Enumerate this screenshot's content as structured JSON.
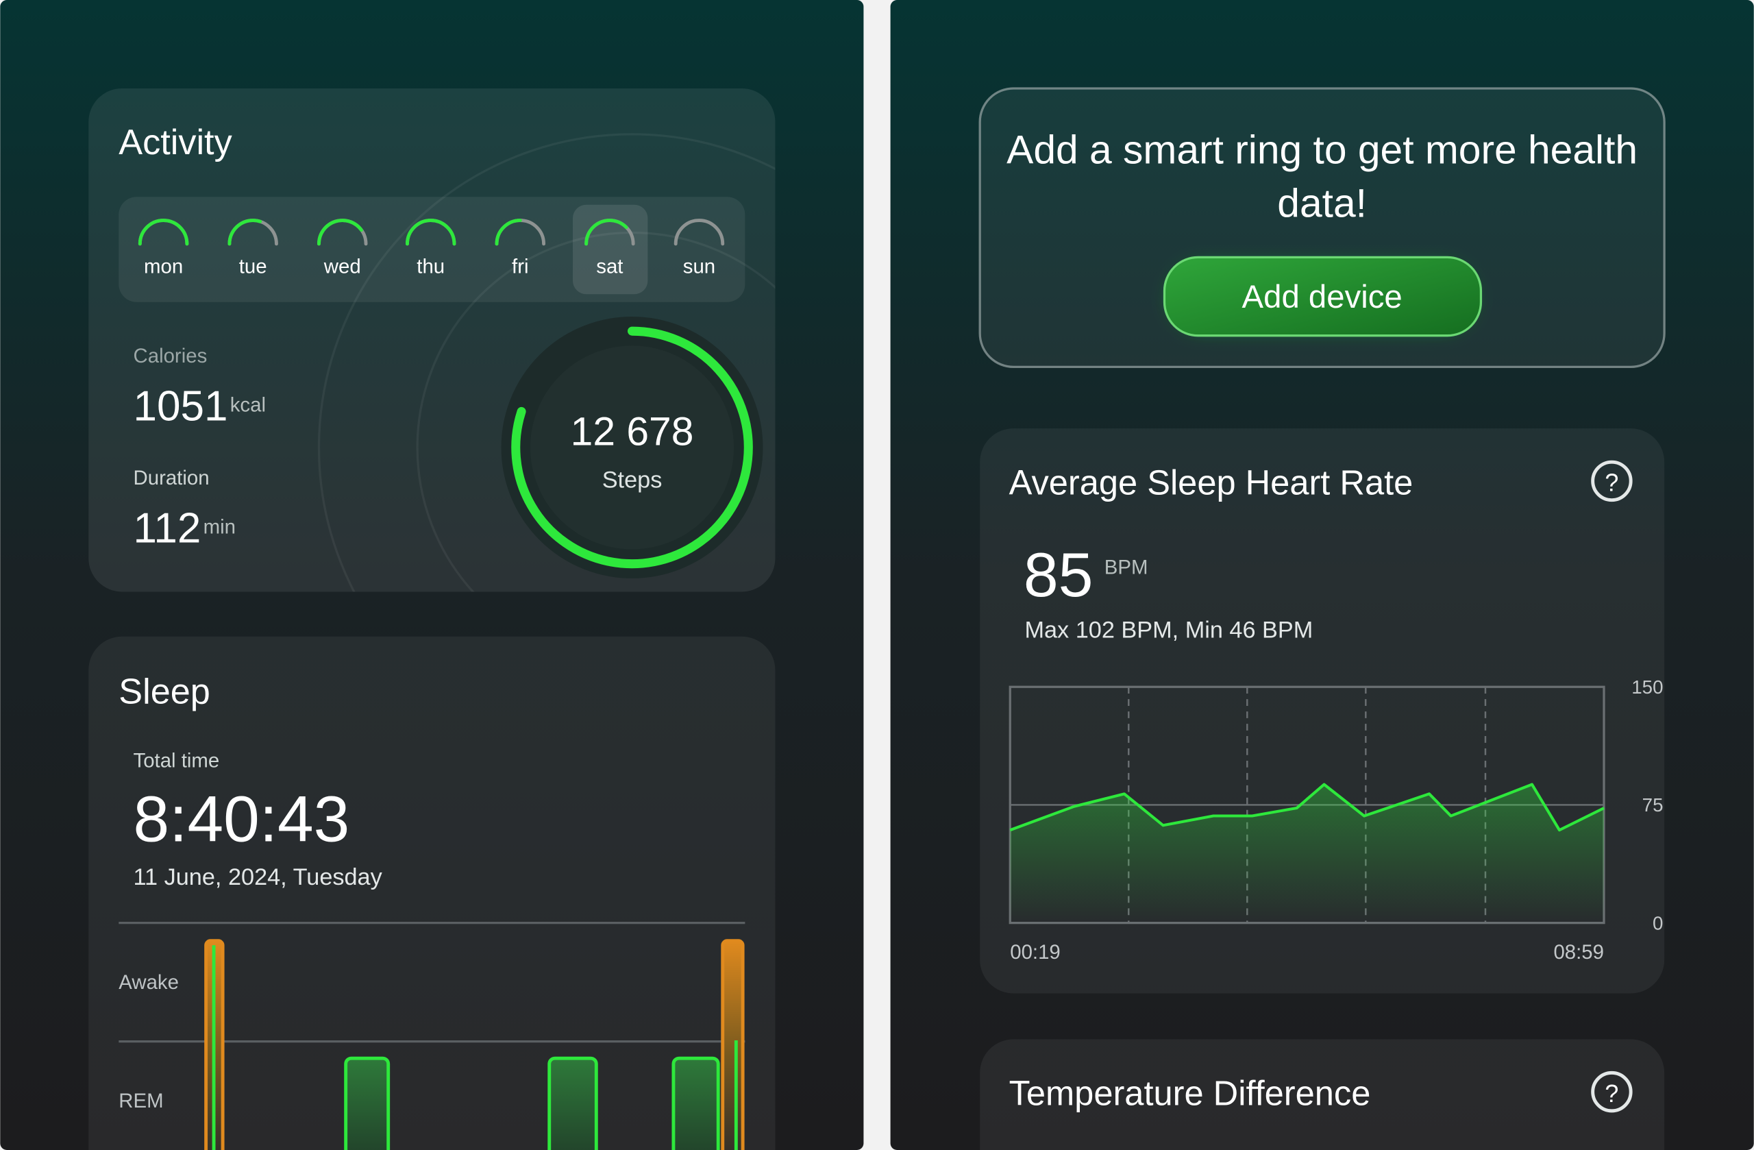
{
  "activity": {
    "title": "Activity",
    "days": [
      {
        "label": "mon",
        "progress": 1
      },
      {
        "label": "tue",
        "progress": 0.6
      },
      {
        "label": "wed",
        "progress": 0.8
      },
      {
        "label": "thu",
        "progress": 1
      },
      {
        "label": "fri",
        "progress": 0.5
      },
      {
        "label": "sat",
        "progress": 0.75
      },
      {
        "label": "sun",
        "progress": 0
      }
    ],
    "selected_day": 5,
    "calories": {
      "label": "Calories",
      "value": "1051",
      "unit": "kcal"
    },
    "duration": {
      "label": "Duration",
      "value": "112",
      "unit": "min"
    },
    "steps": {
      "value": "12 678",
      "label": "Steps",
      "progress": 0.8
    }
  },
  "sleep": {
    "title": "Sleep",
    "total_time_label": "Total time",
    "total_time": "8:40:43",
    "date": "11 June, 2024, Tuesday",
    "stages": [
      "Awake",
      "REM"
    ]
  },
  "promo": {
    "text_lines": [
      "Add a smart ring to get more health",
      "data!"
    ],
    "button": "Add device"
  },
  "heart_rate": {
    "title": "Average Sleep Heart Rate",
    "help": "?",
    "value": "85",
    "unit": "BPM",
    "summary": "Max 102 BPM, Min 46 BPM",
    "chart": {
      "type": "line",
      "color": "#2ee83c",
      "x": [
        0,
        56,
        100,
        134,
        178,
        212,
        251,
        275,
        310,
        367,
        386,
        457,
        481,
        520
      ],
      "values": [
        59,
        74,
        82,
        62,
        68,
        68,
        73,
        88,
        68,
        82,
        68,
        88,
        59,
        73
      ],
      "xlim": [
        0,
        520
      ],
      "xticks": [
        {
          "value": 0,
          "label": "00:19"
        },
        {
          "value": 520,
          "label": "08:59"
        }
      ],
      "ylim": [
        0,
        150
      ],
      "yticks": [
        0,
        75,
        150
      ],
      "grid": true
    }
  },
  "temperature": {
    "title": "Temperature Difference",
    "help": "?"
  }
}
